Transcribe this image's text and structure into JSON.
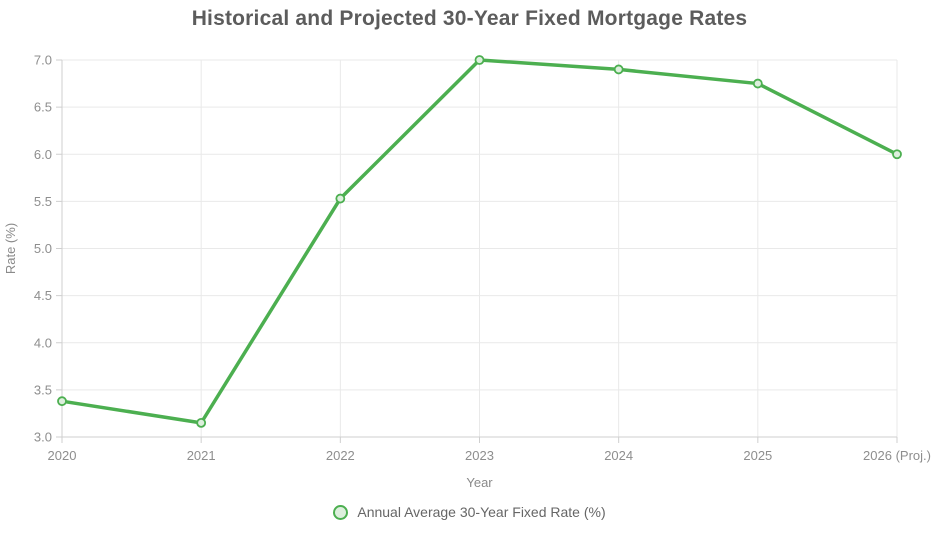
{
  "title": "Historical and Projected 30-Year Fixed Mortgage Rates",
  "chart_data": {
    "type": "line",
    "title": "Historical and Projected 30-Year Fixed Mortgage Rates",
    "x": [
      "2020",
      "2021",
      "2022",
      "2023",
      "2024",
      "2025",
      "2026 (Proj.)"
    ],
    "series": [
      {
        "name": "Annual Average 30-Year Fixed Rate (%)",
        "values": [
          3.38,
          3.15,
          5.53,
          7.0,
          6.9,
          6.75,
          6.0
        ]
      }
    ],
    "xlabel": "Year",
    "ylabel": "Rate (%)",
    "ylim": [
      3.0,
      7.0
    ],
    "ytick_step": 0.5,
    "ytick_labels": [
      "3.0",
      "3.5",
      "4.0",
      "4.5",
      "5.0",
      "5.5",
      "6.0",
      "6.5",
      "7.0"
    ],
    "grid": true,
    "legend_position": "bottom",
    "colors": {
      "line": "#4caf50",
      "point_fill": "#ddefdd"
    }
  },
  "legend": {
    "label": "Annual Average 30-Year Fixed Rate (%)"
  }
}
